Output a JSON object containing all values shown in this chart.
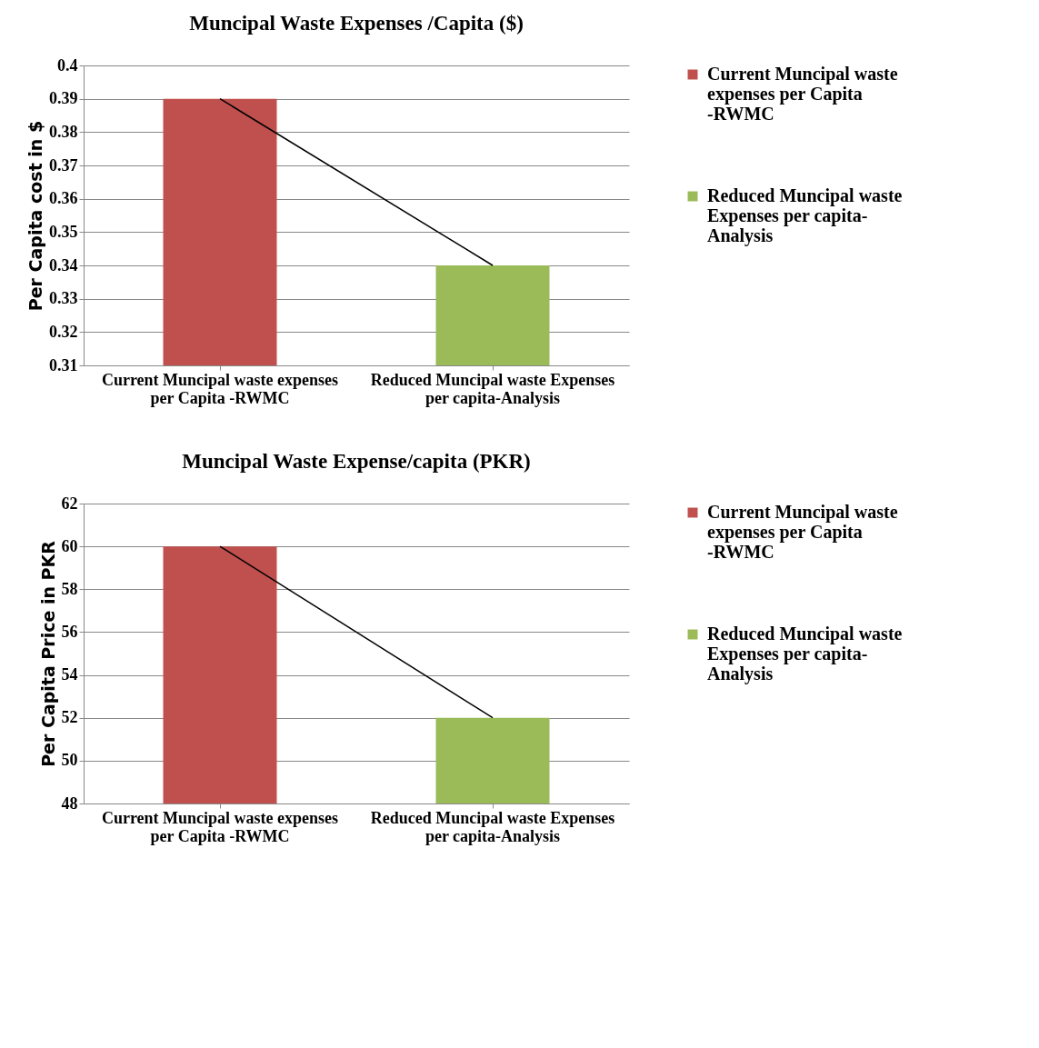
{
  "chart_data": [
    {
      "type": "bar",
      "title": "Muncipal Waste Expenses /Capita ($)",
      "ylabel": "Per Capita cost in $",
      "categories": [
        "Current Muncipal waste expenses per Capita -RWMC",
        "Reduced Muncipal waste Expenses per capita-Analysis"
      ],
      "series": [
        {
          "name": "Current Muncipal waste expenses per Capita -RWMC",
          "color": "#c0504d",
          "values": [
            0.39,
            null
          ]
        },
        {
          "name": "Reduced Muncipal waste Expenses per capita-Analysis",
          "color": "#9bbb59",
          "values": [
            null,
            0.34
          ]
        },
        {
          "type": "line",
          "color": "#000000",
          "values": [
            0.39,
            0.34
          ],
          "marker": "none"
        }
      ],
      "ylim": [
        0.31,
        0.4
      ],
      "yticks": [
        0.31,
        0.32,
        0.33,
        0.34,
        0.35,
        0.36,
        0.37,
        0.38,
        0.39,
        0.4
      ],
      "grid": "y",
      "legend": "right"
    },
    {
      "type": "bar",
      "title": "Muncipal Waste Expense/capita (PKR)",
      "ylabel": "Per Capita Price in PKR",
      "categories": [
        "Current Muncipal waste expenses per Capita -RWMC",
        "Reduced Muncipal waste Expenses per capita-Analysis"
      ],
      "series": [
        {
          "name": "Current Muncipal waste expenses per Capita -RWMC",
          "color": "#c0504d",
          "values": [
            60,
            null
          ]
        },
        {
          "name": "Reduced Muncipal waste Expenses per capita-Analysis",
          "color": "#9bbb59",
          "values": [
            null,
            52
          ]
        },
        {
          "type": "line",
          "color": "#000000",
          "values": [
            60,
            52
          ],
          "marker": "none"
        }
      ],
      "ylim": [
        48,
        62
      ],
      "yticks": [
        48,
        50,
        52,
        54,
        56,
        58,
        60,
        62
      ],
      "grid": "y",
      "legend": "right"
    }
  ]
}
